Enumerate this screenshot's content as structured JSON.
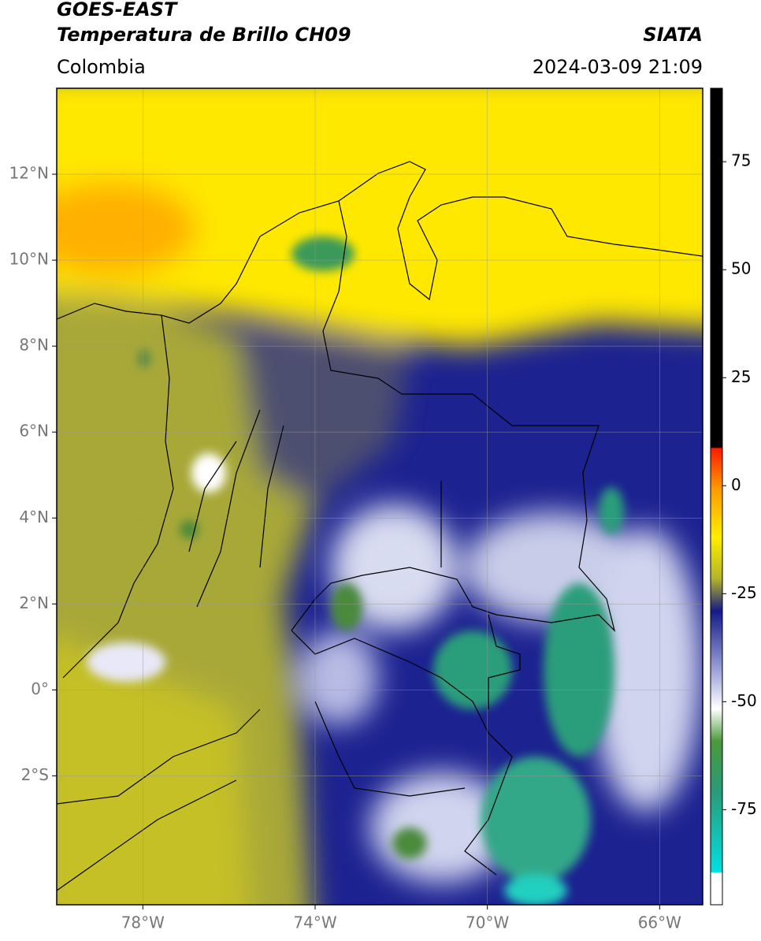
{
  "header": {
    "title": "GOES-EAST",
    "subtitle": "Temperatura de Brillo CH09",
    "agency": "SIATA",
    "region": "Colombia",
    "datetime": "2024-03-09 21:09"
  },
  "map": {
    "xlim": [
      -80,
      -65
    ],
    "ylim": [
      -5,
      14
    ],
    "xticks": [
      {
        "value": -78,
        "label": "78°W"
      },
      {
        "value": -74,
        "label": "74°W"
      },
      {
        "value": -70,
        "label": "70°W"
      },
      {
        "value": -66,
        "label": "66°W"
      }
    ],
    "yticks": [
      {
        "value": 12,
        "label": "12°N"
      },
      {
        "value": 10,
        "label": "10°N"
      },
      {
        "value": 8,
        "label": "8°N"
      },
      {
        "value": 6,
        "label": "6°N"
      },
      {
        "value": 4,
        "label": "4°N"
      },
      {
        "value": 2,
        "label": "2°N"
      },
      {
        "value": 0,
        "label": "0°"
      },
      {
        "value": -2,
        "label": "2°S"
      }
    ],
    "grid": true
  },
  "colorbar": {
    "lim": [
      -97,
      92
    ],
    "ticks": [
      75,
      50,
      25,
      0,
      -25,
      -50,
      -75
    ]
  }
}
